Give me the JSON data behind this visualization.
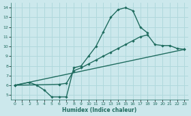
{
  "xlabel": "Humidex (Indice chaleur)",
  "bg_color": "#cce8ec",
  "line_color": "#1e6b5e",
  "grid_color": "#b0d8dc",
  "xlim": [
    -0.5,
    23.5
  ],
  "ylim": [
    4.5,
    14.5
  ],
  "xticks": [
    0,
    1,
    2,
    3,
    4,
    5,
    6,
    7,
    8,
    9,
    10,
    11,
    12,
    13,
    14,
    15,
    16,
    17,
    18,
    19,
    20,
    21,
    22,
    23
  ],
  "yticks": [
    5,
    6,
    7,
    8,
    9,
    10,
    11,
    12,
    13,
    14
  ],
  "line1_x": [
    0,
    2,
    3,
    4,
    5,
    6,
    7,
    8,
    9,
    10,
    11,
    12,
    13,
    14,
    15,
    16,
    17,
    18
  ],
  "line1_y": [
    6.0,
    6.3,
    6.0,
    5.5,
    4.8,
    4.8,
    4.8,
    7.8,
    8.0,
    9.0,
    10.0,
    11.5,
    13.0,
    13.8,
    14.0,
    13.7,
    12.0,
    11.4
  ],
  "line2_x": [
    0,
    6,
    7,
    8,
    9,
    10,
    11,
    12,
    13,
    14,
    15,
    16,
    17,
    18,
    19,
    20,
    21,
    22,
    23
  ],
  "line2_y": [
    6.0,
    6.1,
    6.2,
    7.5,
    7.8,
    8.2,
    8.6,
    9.0,
    9.4,
    9.8,
    10.2,
    10.6,
    11.0,
    11.2,
    10.2,
    10.1,
    10.1,
    9.8,
    9.7
  ],
  "line3_x": [
    0,
    23
  ],
  "line3_y": [
    6.0,
    9.7
  ]
}
